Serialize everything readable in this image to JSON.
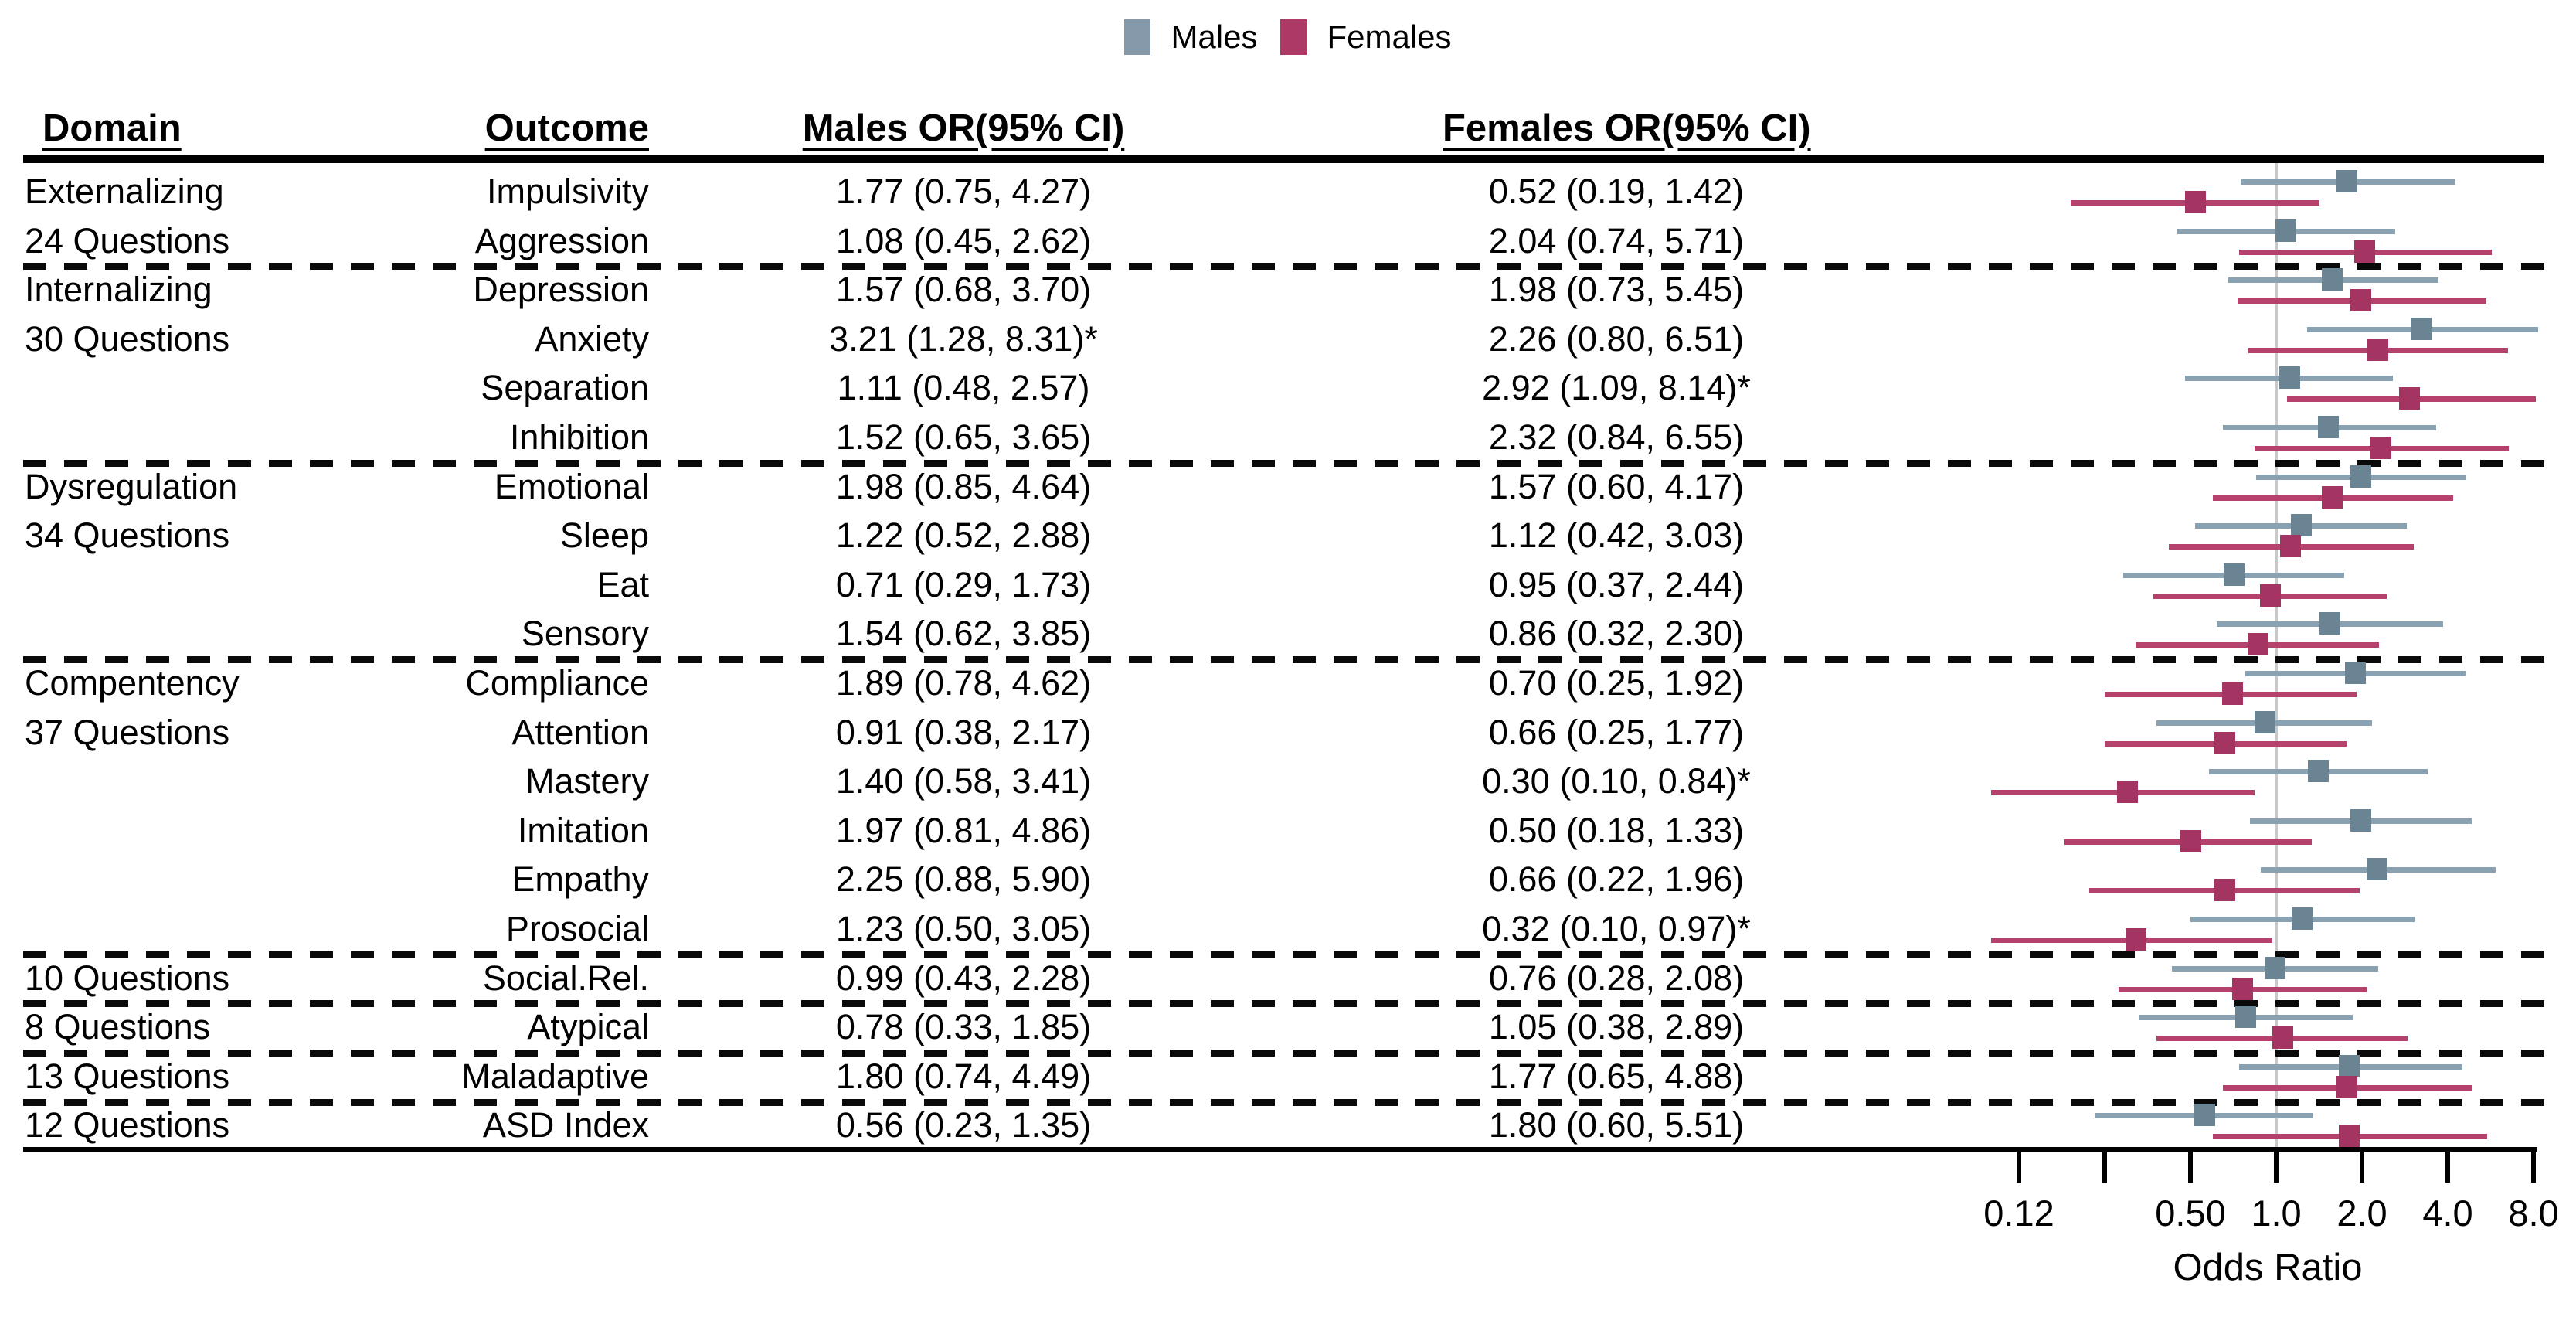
{
  "legend": {
    "items": [
      {
        "label": "Males",
        "color": "#8699AA"
      },
      {
        "label": "Females",
        "color": "#AD3A66"
      }
    ]
  },
  "table": {
    "headers": {
      "domain": "Domain",
      "outcome": "Outcome",
      "males": "Males OR(95% CI)",
      "females": "Females OR(95% CI)"
    }
  },
  "chart_data": {
    "type": "forest",
    "title": "",
    "xlabel": "Odds Ratio",
    "x_axis": {
      "scale": "log2",
      "range": [
        0.125,
        8.0
      ],
      "ticks": [
        0.125,
        0.25,
        0.5,
        1.0,
        2.0,
        4.0,
        8.0
      ],
      "tick_labels": [
        "0.12",
        "",
        "0.50",
        "1.0",
        "2.0",
        "4.0",
        "8.0"
      ],
      "label": "Odds Ratio",
      "reference_line": 1.0
    },
    "series_names": [
      "Males",
      "Females"
    ],
    "colors": {
      "male_square": "#6B8494",
      "male_line": "#8AA1B1",
      "female_square": "#A43562",
      "female_line": "#B4426D",
      "reference_line": "#C9C9C9"
    },
    "rows": [
      {
        "domain": "Externalizing",
        "outcome": "Impulsivity",
        "male_label": "1.77 (0.75, 4.27)",
        "female_label": "0.52 (0.19, 1.42)",
        "male": {
          "or": 1.77,
          "lo": 0.75,
          "hi": 4.27
        },
        "female": {
          "or": 0.52,
          "lo": 0.19,
          "hi": 1.42
        },
        "sep": false
      },
      {
        "domain": "24 Questions",
        "outcome": "Aggression",
        "male_label": "1.08 (0.45, 2.62)",
        "female_label": "2.04 (0.74, 5.71)",
        "male": {
          "or": 1.08,
          "lo": 0.45,
          "hi": 2.62
        },
        "female": {
          "or": 2.04,
          "lo": 0.74,
          "hi": 5.71
        },
        "sep": true
      },
      {
        "domain": "Internalizing",
        "outcome": "Depression",
        "male_label": "1.57 (0.68, 3.70)",
        "female_label": "1.98 (0.73, 5.45)",
        "male": {
          "or": 1.57,
          "lo": 0.68,
          "hi": 3.7
        },
        "female": {
          "or": 1.98,
          "lo": 0.73,
          "hi": 5.45
        },
        "sep": false
      },
      {
        "domain": "30 Questions",
        "outcome": "Anxiety",
        "male_label": "3.21 (1.28, 8.31)*",
        "female_label": "2.26 (0.80, 6.51)",
        "male": {
          "or": 3.21,
          "lo": 1.28,
          "hi": 8.31
        },
        "female": {
          "or": 2.26,
          "lo": 0.8,
          "hi": 6.51
        },
        "sep": false
      },
      {
        "domain": "",
        "outcome": "Separation",
        "male_label": "1.11 (0.48, 2.57)",
        "female_label": "2.92 (1.09, 8.14)*",
        "male": {
          "or": 1.11,
          "lo": 0.48,
          "hi": 2.57
        },
        "female": {
          "or": 2.92,
          "lo": 1.09,
          "hi": 8.14
        },
        "sep": false
      },
      {
        "domain": "",
        "outcome": "Inhibition",
        "male_label": "1.52 (0.65, 3.65)",
        "female_label": "2.32 (0.84, 6.55)",
        "male": {
          "or": 1.52,
          "lo": 0.65,
          "hi": 3.65
        },
        "female": {
          "or": 2.32,
          "lo": 0.84,
          "hi": 6.55
        },
        "sep": true
      },
      {
        "domain": "Dysregulation",
        "outcome": "Emotional",
        "male_label": "1.98 (0.85, 4.64)",
        "female_label": "1.57 (0.60, 4.17)",
        "male": {
          "or": 1.98,
          "lo": 0.85,
          "hi": 4.64
        },
        "female": {
          "or": 1.57,
          "lo": 0.6,
          "hi": 4.17
        },
        "sep": false
      },
      {
        "domain": "34 Questions",
        "outcome": "Sleep",
        "male_label": "1.22 (0.52, 2.88)",
        "female_label": "1.12 (0.42, 3.03)",
        "male": {
          "or": 1.22,
          "lo": 0.52,
          "hi": 2.88
        },
        "female": {
          "or": 1.12,
          "lo": 0.42,
          "hi": 3.03
        },
        "sep": false
      },
      {
        "domain": "",
        "outcome": "Eat",
        "male_label": "0.71 (0.29, 1.73)",
        "female_label": "0.95 (0.37, 2.44)",
        "male": {
          "or": 0.71,
          "lo": 0.29,
          "hi": 1.73
        },
        "female": {
          "or": 0.95,
          "lo": 0.37,
          "hi": 2.44
        },
        "sep": false
      },
      {
        "domain": "",
        "outcome": "Sensory",
        "male_label": "1.54 (0.62, 3.85)",
        "female_label": "0.86 (0.32, 2.30)",
        "male": {
          "or": 1.54,
          "lo": 0.62,
          "hi": 3.85
        },
        "female": {
          "or": 0.86,
          "lo": 0.32,
          "hi": 2.3
        },
        "sep": true
      },
      {
        "domain": "Compentency",
        "outcome": "Compliance",
        "male_label": "1.89 (0.78, 4.62)",
        "female_label": "0.70 (0.25, 1.92)",
        "male": {
          "or": 1.89,
          "lo": 0.78,
          "hi": 4.62
        },
        "female": {
          "or": 0.7,
          "lo": 0.25,
          "hi": 1.92
        },
        "sep": false
      },
      {
        "domain": "37 Questions",
        "outcome": "Attention",
        "male_label": "0.91 (0.38, 2.17)",
        "female_label": "0.66 (0.25, 1.77)",
        "male": {
          "or": 0.91,
          "lo": 0.38,
          "hi": 2.17
        },
        "female": {
          "or": 0.66,
          "lo": 0.25,
          "hi": 1.77
        },
        "sep": false
      },
      {
        "domain": "",
        "outcome": "Mastery",
        "male_label": "1.40 (0.58, 3.41)",
        "female_label": "0.30 (0.10, 0.84)*",
        "male": {
          "or": 1.4,
          "lo": 0.58,
          "hi": 3.41
        },
        "female": {
          "or": 0.3,
          "lo": 0.1,
          "hi": 0.84
        },
        "sep": false
      },
      {
        "domain": "",
        "outcome": "Imitation",
        "male_label": "1.97 (0.81, 4.86)",
        "female_label": "0.50 (0.18, 1.33)",
        "male": {
          "or": 1.97,
          "lo": 0.81,
          "hi": 4.86
        },
        "female": {
          "or": 0.5,
          "lo": 0.18,
          "hi": 1.33
        },
        "sep": false
      },
      {
        "domain": "",
        "outcome": "Empathy",
        "male_label": "2.25 (0.88, 5.90)",
        "female_label": "0.66 (0.22, 1.96)",
        "male": {
          "or": 2.25,
          "lo": 0.88,
          "hi": 5.9
        },
        "female": {
          "or": 0.66,
          "lo": 0.22,
          "hi": 1.96
        },
        "sep": false
      },
      {
        "domain": "",
        "outcome": "Prosocial",
        "male_label": "1.23 (0.50, 3.05)",
        "female_label": "0.32 (0.10, 0.97)*",
        "male": {
          "or": 1.23,
          "lo": 0.5,
          "hi": 3.05
        },
        "female": {
          "or": 0.32,
          "lo": 0.1,
          "hi": 0.97
        },
        "sep": true
      },
      {
        "domain": "10 Questions",
        "outcome": "Social.Rel.",
        "male_label": "0.99 (0.43, 2.28)",
        "female_label": "0.76 (0.28, 2.08)",
        "male": {
          "or": 0.99,
          "lo": 0.43,
          "hi": 2.28
        },
        "female": {
          "or": 0.76,
          "lo": 0.28,
          "hi": 2.08
        },
        "sep": true
      },
      {
        "domain": "8 Questions",
        "outcome": "Atypical",
        "male_label": "0.78 (0.33, 1.85)",
        "female_label": "1.05 (0.38, 2.89)",
        "male": {
          "or": 0.78,
          "lo": 0.33,
          "hi": 1.85
        },
        "female": {
          "or": 1.05,
          "lo": 0.38,
          "hi": 2.89
        },
        "sep": true
      },
      {
        "domain": "13 Questions",
        "outcome": "Maladaptive",
        "male_label": "1.80 (0.74, 4.49)",
        "female_label": "1.77 (0.65, 4.88)",
        "male": {
          "or": 1.8,
          "lo": 0.74,
          "hi": 4.49
        },
        "female": {
          "or": 1.77,
          "lo": 0.65,
          "hi": 4.88
        },
        "sep": true
      },
      {
        "domain": "12 Questions",
        "outcome": "ASD Index",
        "male_label": "0.56 (0.23, 1.35)",
        "female_label": "1.80 (0.60, 5.51)",
        "male": {
          "or": 0.56,
          "lo": 0.23,
          "hi": 1.35
        },
        "female": {
          "or": 1.8,
          "lo": 0.6,
          "hi": 5.51
        },
        "sep": false
      }
    ]
  }
}
